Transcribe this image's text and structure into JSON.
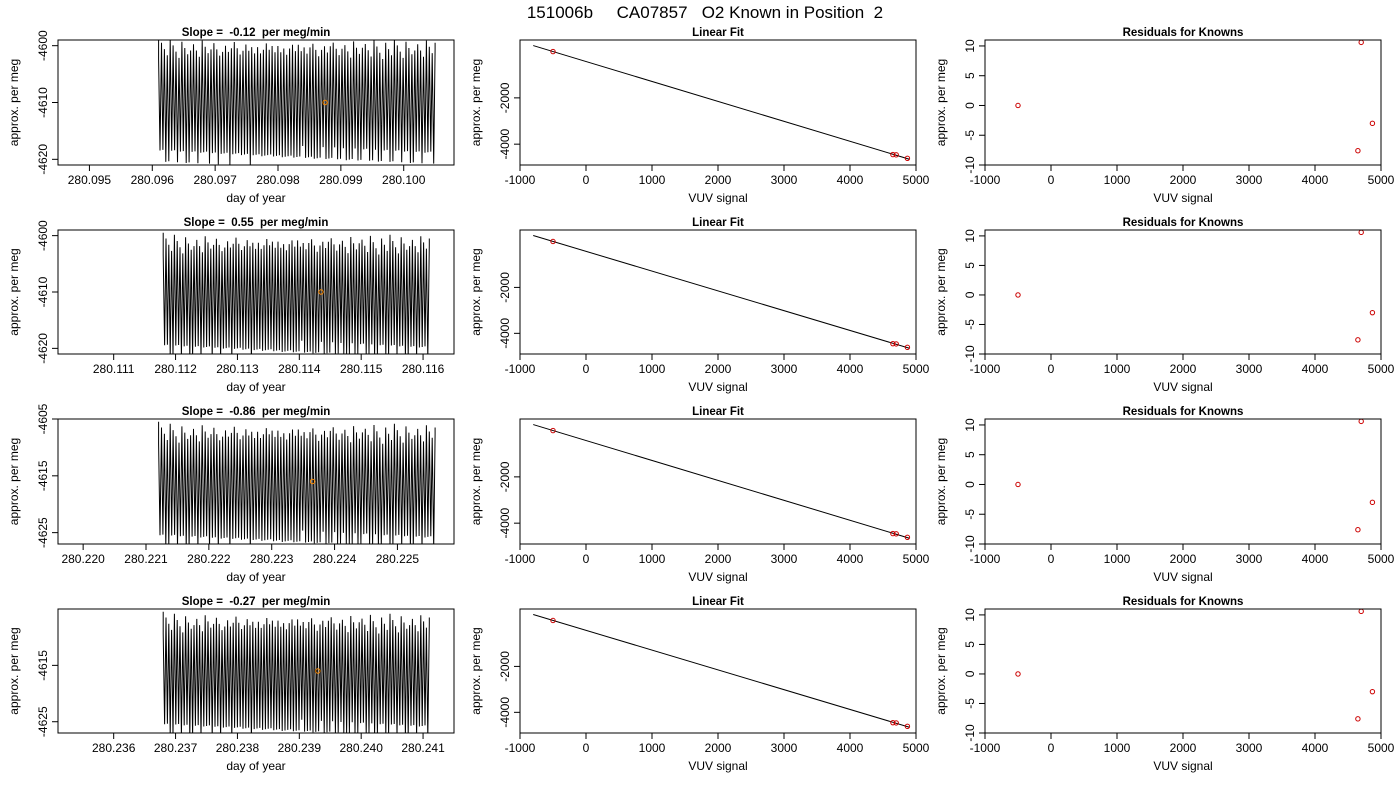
{
  "figure_title": "151006b     CA07857   O2 Known in Position  2",
  "colors": {
    "trace": "#000000",
    "marker_mid": "#ff8c00",
    "marker_known": "#cc0000",
    "fit_line": "#000000"
  },
  "chart_data": [
    {
      "type": "line",
      "row": 1,
      "title": "Slope =  -0.12  per meg/min",
      "xlabel": "day of year",
      "ylabel": "approx. per meg",
      "xlim": [
        280.0945,
        280.1008
      ],
      "ylim": [
        -4621,
        -4599
      ],
      "xticks": [
        280.095,
        280.096,
        280.097,
        280.098,
        280.099,
        280.1
      ],
      "xtick_labels": [
        "280.095",
        "280.096",
        "280.097",
        "280.098",
        "280.099",
        "280.100"
      ],
      "yticks": [
        -4600,
        -4610,
        -4620
      ],
      "ytick_labels": [
        "-4600",
        "-4610",
        "-4620"
      ],
      "trace": {
        "x_start": 280.0961,
        "x_end": 280.1005,
        "cycles": 95,
        "center": -4610,
        "amplitude": 9.5,
        "start_offset": 2
      },
      "marker": {
        "x": 280.09875,
        "y": -4610
      }
    },
    {
      "type": "scatter",
      "row": 1,
      "title": "Linear Fit",
      "xlabel": "VUV signal",
      "ylabel": "approx. per meg",
      "xlim": [
        -1000,
        5000
      ],
      "ylim": [
        -4900,
        500
      ],
      "xticks": [
        -1000,
        0,
        1000,
        2000,
        3000,
        4000,
        5000
      ],
      "xtick_labels": [
        "-1000",
        "0",
        "1000",
        "2000",
        "3000",
        "4000",
        "5000"
      ],
      "yticks": [
        -2000,
        -4000
      ],
      "ytick_labels": [
        "-2000",
        "-4000"
      ],
      "fit_line": {
        "x": [
          -800,
          4900
        ],
        "y": [
          260,
          -4650
        ]
      },
      "points": [
        {
          "x": -500,
          "y": 0
        },
        {
          "x": 4650,
          "y": -4450
        },
        {
          "x": 4700,
          "y": -4460
        },
        {
          "x": 4870,
          "y": -4610
        }
      ]
    },
    {
      "type": "scatter",
      "row": 1,
      "title": "Residuals for Knowns",
      "xlabel": "VUV signal",
      "ylabel": "approx. per meg",
      "xlim": [
        -1000,
        5000
      ],
      "ylim": [
        -10,
        11
      ],
      "xticks": [
        -1000,
        0,
        1000,
        2000,
        3000,
        4000,
        5000
      ],
      "xtick_labels": [
        "-1000",
        "0",
        "1000",
        "2000",
        "3000",
        "4000",
        "5000"
      ],
      "yticks": [
        10,
        5,
        0,
        -5,
        -10
      ],
      "ytick_labels": [
        "10",
        "5",
        "0",
        "-5",
        "-10"
      ],
      "points": [
        {
          "x": -500,
          "y": 0
        },
        {
          "x": 4650,
          "y": -7.6
        },
        {
          "x": 4700,
          "y": 10.6
        },
        {
          "x": 4870,
          "y": -3
        }
      ]
    },
    {
      "type": "line",
      "row": 2,
      "title": "Slope =  0.55  per meg/min",
      "xlabel": "day of year",
      "ylabel": "approx. per meg",
      "xlim": [
        280.1101,
        280.1165
      ],
      "ylim": [
        -4621,
        -4599
      ],
      "xticks": [
        280.111,
        280.112,
        280.113,
        280.114,
        280.115,
        280.116
      ],
      "xtick_labels": [
        "280.111",
        "280.112",
        "280.113",
        "280.114",
        "280.115",
        "280.116"
      ],
      "yticks": [
        -4600,
        -4610,
        -4620
      ],
      "ytick_labels": [
        "-4600",
        "-4610",
        "-4620"
      ],
      "trace": {
        "x_start": 280.1118,
        "x_end": 280.1161,
        "cycles": 95,
        "center": -4611,
        "amplitude": 9.5,
        "start_offset": 2
      },
      "marker": {
        "x": 280.11435,
        "y": -4610
      }
    },
    {
      "type": "scatter",
      "row": 2,
      "title": "Linear Fit",
      "xlabel": "VUV signal",
      "ylabel": "approx. per meg",
      "xlim": [
        -1000,
        5000
      ],
      "ylim": [
        -4900,
        500
      ],
      "xticks": [
        -1000,
        0,
        1000,
        2000,
        3000,
        4000,
        5000
      ],
      "xtick_labels": [
        "-1000",
        "0",
        "1000",
        "2000",
        "3000",
        "4000",
        "5000"
      ],
      "yticks": [
        -2000,
        -4000
      ],
      "ytick_labels": [
        "-2000",
        "-4000"
      ],
      "fit_line": {
        "x": [
          -800,
          4900
        ],
        "y": [
          260,
          -4650
        ]
      },
      "points": [
        {
          "x": -500,
          "y": 0
        },
        {
          "x": 4650,
          "y": -4450
        },
        {
          "x": 4700,
          "y": -4460
        },
        {
          "x": 4870,
          "y": -4610
        }
      ]
    },
    {
      "type": "scatter",
      "row": 2,
      "title": "Residuals for Knowns",
      "xlabel": "VUV signal",
      "ylabel": "approx. per meg",
      "xlim": [
        -1000,
        5000
      ],
      "ylim": [
        -10,
        11
      ],
      "xticks": [
        -1000,
        0,
        1000,
        2000,
        3000,
        4000,
        5000
      ],
      "xtick_labels": [
        "-1000",
        "0",
        "1000",
        "2000",
        "3000",
        "4000",
        "5000"
      ],
      "yticks": [
        10,
        5,
        0,
        -5,
        -10
      ],
      "ytick_labels": [
        "10",
        "5",
        "0",
        "-5",
        "-10"
      ],
      "points": [
        {
          "x": -500,
          "y": 0
        },
        {
          "x": 4650,
          "y": -7.6
        },
        {
          "x": 4700,
          "y": 10.6
        },
        {
          "x": 4870,
          "y": -3
        }
      ]
    },
    {
      "type": "line",
      "row": 3,
      "title": "Slope =  -0.86  per meg/min",
      "xlabel": "day of year",
      "ylabel": "approx. per meg",
      "xlim": [
        280.2196,
        280.2259
      ],
      "ylim": [
        -4627,
        -4605
      ],
      "xticks": [
        280.22,
        280.221,
        280.222,
        280.223,
        280.224,
        280.225
      ],
      "xtick_labels": [
        "280.220",
        "280.221",
        "280.222",
        "280.223",
        "280.224",
        "280.225"
      ],
      "yticks": [
        -4605,
        -4615,
        -4625
      ],
      "ytick_labels": [
        "-4605",
        "-4615",
        "-4625"
      ],
      "trace": {
        "x_start": 280.2212,
        "x_end": 280.2256,
        "cycles": 95,
        "center": -4617,
        "amplitude": 9.5,
        "start_offset": 2
      },
      "marker": {
        "x": 280.22365,
        "y": -4616
      }
    },
    {
      "type": "scatter",
      "row": 3,
      "title": "Linear Fit",
      "xlabel": "VUV signal",
      "ylabel": "approx. per meg",
      "xlim": [
        -1000,
        5000
      ],
      "ylim": [
        -4900,
        500
      ],
      "xticks": [
        -1000,
        0,
        1000,
        2000,
        3000,
        4000,
        5000
      ],
      "xtick_labels": [
        "-1000",
        "0",
        "1000",
        "2000",
        "3000",
        "4000",
        "5000"
      ],
      "yticks": [
        -2000,
        -4000
      ],
      "ytick_labels": [
        "-2000",
        "-4000"
      ],
      "fit_line": {
        "x": [
          -800,
          4900
        ],
        "y": [
          260,
          -4650
        ]
      },
      "points": [
        {
          "x": -500,
          "y": 0
        },
        {
          "x": 4650,
          "y": -4450
        },
        {
          "x": 4700,
          "y": -4460
        },
        {
          "x": 4870,
          "y": -4610
        }
      ]
    },
    {
      "type": "scatter",
      "row": 3,
      "title": "Residuals for Knowns",
      "xlabel": "VUV signal",
      "ylabel": "approx. per meg",
      "xlim": [
        -1000,
        5000
      ],
      "ylim": [
        -10,
        11
      ],
      "xticks": [
        -1000,
        0,
        1000,
        2000,
        3000,
        4000,
        5000
      ],
      "xtick_labels": [
        "-1000",
        "0",
        "1000",
        "2000",
        "3000",
        "4000",
        "5000"
      ],
      "yticks": [
        10,
        5,
        0,
        -5,
        -10
      ],
      "ytick_labels": [
        "10",
        "5",
        "0",
        "-5",
        "-10"
      ],
      "points": [
        {
          "x": -500,
          "y": 0
        },
        {
          "x": 4650,
          "y": -7.6
        },
        {
          "x": 4700,
          "y": 10.6
        },
        {
          "x": 4870,
          "y": -3
        }
      ]
    },
    {
      "type": "line",
      "row": 4,
      "title": "Slope =  -0.27  per meg/min",
      "xlabel": "day of year",
      "ylabel": "approx. per meg",
      "xlim": [
        280.2351,
        280.2415
      ],
      "ylim": [
        -4627,
        -4605
      ],
      "xticks": [
        280.236,
        280.237,
        280.238,
        280.239,
        280.24,
        280.241
      ],
      "xtick_labels": [
        "280.236",
        "280.237",
        "280.238",
        "280.239",
        "280.240",
        "280.241"
      ],
      "yticks": [
        -4615,
        -4625
      ],
      "ytick_labels": [
        "-4615",
        "-4625"
      ],
      "trace": {
        "x_start": 280.2368,
        "x_end": 280.2411,
        "cycles": 95,
        "center": -4617,
        "amplitude": 9.5,
        "start_offset": 2
      },
      "marker": {
        "x": 280.2393,
        "y": -4616
      }
    },
    {
      "type": "scatter",
      "row": 4,
      "title": "Linear Fit",
      "xlabel": "VUV signal",
      "ylabel": "approx. per meg",
      "xlim": [
        -1000,
        5000
      ],
      "ylim": [
        -4900,
        500
      ],
      "xticks": [
        -1000,
        0,
        1000,
        2000,
        3000,
        4000,
        5000
      ],
      "xtick_labels": [
        "-1000",
        "0",
        "1000",
        "2000",
        "3000",
        "4000",
        "5000"
      ],
      "yticks": [
        -2000,
        -4000
      ],
      "ytick_labels": [
        "-2000",
        "-4000"
      ],
      "fit_line": {
        "x": [
          -800,
          4900
        ],
        "y": [
          260,
          -4650
        ]
      },
      "points": [
        {
          "x": -500,
          "y": 0
        },
        {
          "x": 4650,
          "y": -4450
        },
        {
          "x": 4700,
          "y": -4460
        },
        {
          "x": 4870,
          "y": -4610
        }
      ]
    },
    {
      "type": "scatter",
      "row": 4,
      "title": "Residuals for Knowns",
      "xlabel": "VUV signal",
      "ylabel": "approx. per meg",
      "xlim": [
        -1000,
        5000
      ],
      "ylim": [
        -10,
        11
      ],
      "xticks": [
        -1000,
        0,
        1000,
        2000,
        3000,
        4000,
        5000
      ],
      "xtick_labels": [
        "-1000",
        "0",
        "1000",
        "2000",
        "3000",
        "4000",
        "5000"
      ],
      "yticks": [
        10,
        5,
        0,
        -5,
        -10
      ],
      "ytick_labels": [
        "10",
        "5",
        "0",
        "-5",
        "-10"
      ],
      "points": [
        {
          "x": -500,
          "y": 0
        },
        {
          "x": 4650,
          "y": -7.6
        },
        {
          "x": 4700,
          "y": 10.6
        },
        {
          "x": 4870,
          "y": -3
        }
      ]
    }
  ]
}
